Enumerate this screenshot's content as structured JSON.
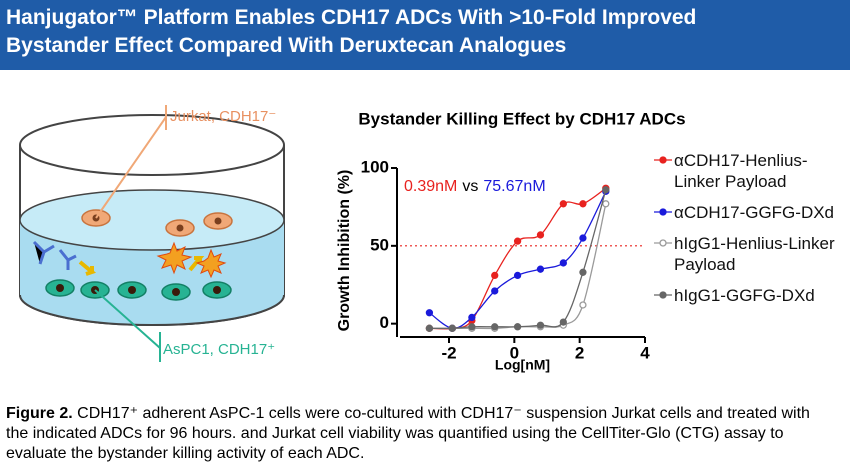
{
  "header": {
    "title": [
      "Hanjugator™ Platform Enables CDH17 ADCs With >10-Fold Improved",
      "Bystander Effect  Compared With Deruxtecan Analogues"
    ]
  },
  "diagram": {
    "jurkat_label": "Jurkat, CDH17⁻",
    "aspc1_label": "AsPC1, CDH17⁺"
  },
  "chart_data": {
    "type": "scatter",
    "title": "Bystander Killing Effect by CDH17 ADCs",
    "x_label": "Log[nM]",
    "y_label": "Growth Inhibition (%)",
    "annotations": [
      "0.39nM",
      "vs",
      "75.67nM"
    ],
    "hline": 50,
    "x": [
      -2.6,
      -1.9,
      -1.3,
      -0.6,
      0.1,
      0.8,
      1.5,
      2.1,
      2.8
    ],
    "series": [
      {
        "name": "αCDH17-Henlius-Linker Payload",
        "color": "#e8221f",
        "marker": "filled",
        "values": [
          -3,
          -3,
          2,
          31,
          53,
          57,
          77,
          77,
          87
        ]
      },
      {
        "name": "αCDH17-GGFG-DXd",
        "color": "#1a1adb",
        "marker": "filled",
        "values": [
          7,
          -3,
          4,
          21,
          31,
          35,
          39,
          55,
          85
        ]
      },
      {
        "name": "hIgG1-Henlius-Linker Payload",
        "color": "#9a9a9a",
        "marker": "open",
        "values": [
          -3,
          -3,
          -3,
          -3,
          -2,
          -2,
          -1,
          12,
          77
        ]
      },
      {
        "name": "hIgG1-GGFG-DXd",
        "color": "#666666",
        "marker": "filled",
        "values": [
          -3,
          -3,
          -2,
          -2,
          -2,
          -1,
          1,
          33,
          86
        ]
      }
    ],
    "xlim": [
      -3.5,
      4
    ],
    "ylim": [
      -6,
      100
    ],
    "xticks": [
      -2,
      0,
      2,
      4
    ],
    "yticks": [
      0,
      50,
      100
    ]
  },
  "caption": {
    "label": "Figure 2.",
    "text": "CDH17⁺ adherent AsPC-1 cells were co-cultured with CDH17⁻ suspension Jurkat cells and treated with the indicated ADCs for 96 hours. and Jurkat cell viability was quantified using the CellTiter-Glo (CTG) assay to evaluate the bystander killing activity of each ADC."
  }
}
